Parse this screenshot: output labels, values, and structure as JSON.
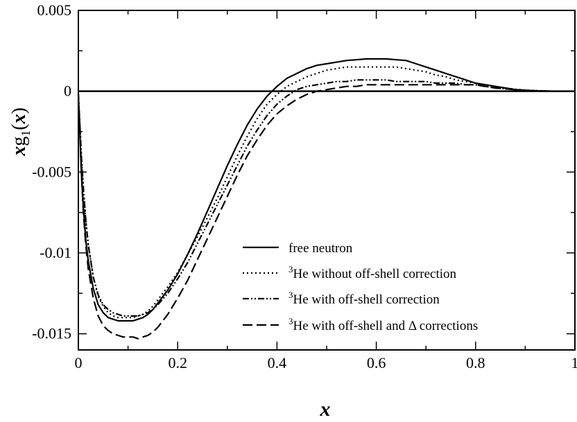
{
  "chart_data": {
    "type": "line",
    "title": "",
    "xlabel": "x",
    "ylabel": {
      "main": "x",
      "symbol": "g",
      "subscript": "1",
      "arg_open": "(",
      "arg": "x",
      "arg_close": ")"
    },
    "xlim": [
      0,
      1
    ],
    "ylim": [
      -0.016,
      0.005
    ],
    "x_ticks": [
      0,
      0.2,
      0.4,
      0.6,
      0.8,
      1
    ],
    "x_tick_labels": [
      "0",
      "0.2",
      "0.4",
      "0.6",
      "0.8",
      "1"
    ],
    "y_ticks": [
      0.005,
      0,
      -0.005,
      -0.01,
      -0.015
    ],
    "y_tick_labels": [
      "0.005",
      "0",
      "-0.005",
      "-0.01",
      "-0.015"
    ],
    "grid": false,
    "legend_position": "lower-right",
    "zero_line": true,
    "series": [
      {
        "name": "free neutron",
        "legend_sup": "",
        "legend_main": "free neutron",
        "style": "solid",
        "color": "#000000",
        "x": [
          0.0,
          0.003,
          0.006,
          0.01,
          0.015,
          0.02,
          0.03,
          0.04,
          0.05,
          0.06,
          0.07,
          0.08,
          0.09,
          0.1,
          0.11,
          0.12,
          0.13,
          0.14,
          0.15,
          0.16,
          0.18,
          0.2,
          0.22,
          0.24,
          0.26,
          0.28,
          0.3,
          0.32,
          0.34,
          0.36,
          0.38,
          0.4,
          0.42,
          0.44,
          0.46,
          0.48,
          0.5,
          0.52,
          0.54,
          0.56,
          0.58,
          0.6,
          0.62,
          0.64,
          0.66,
          0.68,
          0.7,
          0.72,
          0.74,
          0.76,
          0.78,
          0.8,
          0.82,
          0.84,
          0.86,
          0.88,
          0.9,
          0.92,
          0.94,
          0.96,
          0.98,
          1.0
        ],
        "y": [
          -0.0002,
          -0.0025,
          -0.005,
          -0.0072,
          -0.0092,
          -0.0105,
          -0.0122,
          -0.0132,
          -0.0137,
          -0.014,
          -0.0141,
          -0.0142,
          -0.0142,
          -0.0142,
          -0.0142,
          -0.0141,
          -0.014,
          -0.0138,
          -0.0135,
          -0.0131,
          -0.0123,
          -0.0113,
          -0.0101,
          -0.0088,
          -0.0074,
          -0.006,
          -0.0046,
          -0.0033,
          -0.0021,
          -0.0011,
          -0.0003,
          0.0003,
          0.0008,
          0.0011,
          0.0014,
          0.0016,
          0.0017,
          0.0018,
          0.0019,
          0.00195,
          0.002,
          0.002,
          0.002,
          0.00195,
          0.0019,
          0.0017,
          0.0015,
          0.0013,
          0.0011,
          0.0009,
          0.0007,
          0.0005,
          0.0004,
          0.0003,
          0.0002,
          0.0001,
          6e-05,
          3e-05,
          1e-05,
          0.0,
          0.0,
          0.0
        ]
      },
      {
        "name": "3He without off-shell correction",
        "legend_sup": "3",
        "legend_main": "He without off-shell correction",
        "style": "dotted",
        "color": "#000000",
        "x": [
          0.0,
          0.003,
          0.006,
          0.01,
          0.015,
          0.02,
          0.03,
          0.04,
          0.05,
          0.06,
          0.07,
          0.08,
          0.09,
          0.1,
          0.11,
          0.12,
          0.13,
          0.14,
          0.15,
          0.16,
          0.18,
          0.2,
          0.22,
          0.24,
          0.26,
          0.28,
          0.3,
          0.32,
          0.34,
          0.36,
          0.38,
          0.4,
          0.42,
          0.44,
          0.46,
          0.48,
          0.5,
          0.52,
          0.54,
          0.56,
          0.58,
          0.6,
          0.62,
          0.64,
          0.66,
          0.68,
          0.7,
          0.72,
          0.74,
          0.76,
          0.78,
          0.8,
          0.82,
          0.84,
          0.86,
          0.88,
          0.9,
          0.92,
          0.94,
          0.96,
          0.98,
          1.0
        ],
        "y": [
          -0.0002,
          -0.002,
          -0.004,
          -0.006,
          -0.008,
          -0.0095,
          -0.0115,
          -0.0127,
          -0.0133,
          -0.0137,
          -0.0139,
          -0.014,
          -0.014,
          -0.014,
          -0.014,
          -0.0139,
          -0.0138,
          -0.0136,
          -0.0133,
          -0.0129,
          -0.0121,
          -0.0112,
          -0.0101,
          -0.009,
          -0.0078,
          -0.0066,
          -0.0053,
          -0.004,
          -0.0028,
          -0.0017,
          -0.0008,
          -0.0002,
          0.0003,
          0.0006,
          0.0009,
          0.0011,
          0.0013,
          0.0014,
          0.0015,
          0.0015,
          0.0015,
          0.0015,
          0.0015,
          0.0015,
          0.0014,
          0.0013,
          0.0012,
          0.001,
          0.0009,
          0.0007,
          0.0006,
          0.0005,
          0.0004,
          0.0003,
          0.0002,
          0.00012,
          7e-05,
          4e-05,
          2e-05,
          0.0,
          0.0,
          0.0
        ]
      },
      {
        "name": "3He with off-shell correction",
        "legend_sup": "3",
        "legend_main": "He with off-shell correction",
        "style": "dashdot",
        "color": "#000000",
        "x": [
          0.0,
          0.003,
          0.006,
          0.01,
          0.015,
          0.02,
          0.03,
          0.04,
          0.05,
          0.06,
          0.07,
          0.08,
          0.09,
          0.1,
          0.11,
          0.12,
          0.13,
          0.14,
          0.15,
          0.16,
          0.18,
          0.2,
          0.22,
          0.24,
          0.26,
          0.28,
          0.3,
          0.32,
          0.34,
          0.36,
          0.38,
          0.4,
          0.42,
          0.44,
          0.46,
          0.48,
          0.5,
          0.52,
          0.54,
          0.56,
          0.58,
          0.6,
          0.62,
          0.64,
          0.66,
          0.68,
          0.7,
          0.72,
          0.74,
          0.76,
          0.78,
          0.8,
          0.82,
          0.84,
          0.86,
          0.88,
          0.9,
          0.92,
          0.94,
          0.96,
          0.98,
          1.0
        ],
        "y": [
          -0.0002,
          -0.002,
          -0.004,
          -0.006,
          -0.008,
          -0.0095,
          -0.0115,
          -0.0126,
          -0.0132,
          -0.0135,
          -0.0137,
          -0.0138,
          -0.0139,
          -0.0139,
          -0.0139,
          -0.0139,
          -0.0138,
          -0.0137,
          -0.0135,
          -0.0132,
          -0.0125,
          -0.0116,
          -0.0106,
          -0.0094,
          -0.0082,
          -0.007,
          -0.0058,
          -0.0046,
          -0.0034,
          -0.0024,
          -0.0015,
          -0.0008,
          -0.0003,
          0.0001,
          0.0003,
          0.0004,
          0.0005,
          0.0006,
          0.0006,
          0.0007,
          0.0007,
          0.0007,
          0.0007,
          0.0006,
          0.0006,
          0.0006,
          0.0006,
          0.0005,
          0.0005,
          0.0005,
          0.0004,
          0.0004,
          0.0003,
          0.0002,
          0.00015,
          0.0001,
          6e-05,
          3e-05,
          1e-05,
          0.0,
          0.0,
          0.0
        ]
      },
      {
        "name": "3He with off-shell and Δ corrections",
        "legend_sup": "3",
        "legend_main": "He with off-shell and Δ corrections",
        "style": "dashed",
        "color": "#000000",
        "x": [
          0.0,
          0.003,
          0.006,
          0.01,
          0.015,
          0.02,
          0.03,
          0.04,
          0.05,
          0.06,
          0.07,
          0.08,
          0.09,
          0.1,
          0.11,
          0.12,
          0.13,
          0.14,
          0.15,
          0.16,
          0.18,
          0.2,
          0.22,
          0.24,
          0.26,
          0.28,
          0.3,
          0.32,
          0.34,
          0.36,
          0.38,
          0.4,
          0.42,
          0.44,
          0.46,
          0.48,
          0.5,
          0.52,
          0.54,
          0.56,
          0.58,
          0.6,
          0.62,
          0.64,
          0.66,
          0.68,
          0.7,
          0.72,
          0.74,
          0.76,
          0.78,
          0.8,
          0.82,
          0.84,
          0.86,
          0.88,
          0.9,
          0.92,
          0.94,
          0.96,
          0.98,
          1.0
        ],
        "y": [
          -0.0002,
          -0.0025,
          -0.005,
          -0.0075,
          -0.0095,
          -0.011,
          -0.0128,
          -0.0139,
          -0.0145,
          -0.0148,
          -0.015,
          -0.0151,
          -0.0152,
          -0.0152,
          -0.0152,
          -0.0153,
          -0.0152,
          -0.0151,
          -0.0149,
          -0.0146,
          -0.0138,
          -0.0128,
          -0.0117,
          -0.0104,
          -0.0091,
          -0.0078,
          -0.0065,
          -0.0052,
          -0.004,
          -0.003,
          -0.0021,
          -0.0014,
          -0.0009,
          -0.0005,
          -0.0002,
          0.0,
          0.0001,
          0.0002,
          0.0003,
          0.0003,
          0.0004,
          0.0004,
          0.0004,
          0.0004,
          0.0004,
          0.0004,
          0.0004,
          0.0004,
          0.0004,
          0.0004,
          0.0004,
          0.0004,
          0.0003,
          0.0002,
          0.00015,
          0.0001,
          6e-05,
          3e-05,
          1e-05,
          0.0,
          0.0,
          0.0
        ]
      }
    ]
  }
}
